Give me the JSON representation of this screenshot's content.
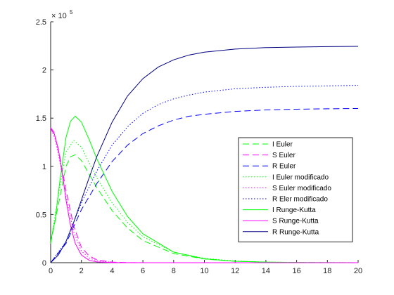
{
  "chart_data": {
    "type": "line",
    "xlim": [
      0,
      20
    ],
    "ylim": [
      0,
      250000
    ],
    "x_ticks": [
      "0",
      "2",
      "4",
      "6",
      "8",
      "10",
      "12",
      "14",
      "16",
      "18",
      "20"
    ],
    "y_ticks": [
      "0",
      "0.5",
      "1",
      "1.5",
      "2",
      "2.5"
    ],
    "y_exponent_base": "× 10",
    "y_exponent_power": "5",
    "grid": false,
    "legend_position": "right-middle",
    "series": [
      {
        "name": "I Euler",
        "color": "#00ff00",
        "style": "dashed",
        "x": [
          0,
          0.5,
          1,
          1.3,
          1.6,
          2,
          2.5,
          3,
          4,
          5,
          6,
          8,
          10,
          12,
          14,
          16,
          18,
          20
        ],
        "y": [
          20000,
          60000,
          100000,
          110000,
          112000,
          106000,
          92000,
          78000,
          54000,
          36000,
          23000,
          9500,
          3800,
          1500,
          600,
          250,
          100,
          40
        ]
      },
      {
        "name": "S Euler",
        "color": "#ff00ff",
        "style": "dashed",
        "x": [
          0,
          0.3,
          0.6,
          1,
          1.5,
          2,
          2.5,
          3,
          4,
          5,
          6,
          8,
          10,
          20
        ],
        "y": [
          140000,
          130000,
          110000,
          75000,
          38000,
          16000,
          7000,
          3000,
          600,
          150,
          40,
          5,
          0,
          0
        ]
      },
      {
        "name": "R Euler",
        "color": "#0000ff",
        "style": "dashed",
        "x": [
          0,
          1,
          2,
          3,
          4,
          5,
          6,
          7,
          8,
          9,
          10,
          12,
          14,
          16,
          18,
          20
        ],
        "y": [
          0,
          20000,
          55000,
          82000,
          105000,
          122000,
          134000,
          142000,
          148000,
          152000,
          154000,
          157000,
          158500,
          159300,
          159700,
          160000
        ]
      },
      {
        "name": "I Euler modificado",
        "color": "#00ff00",
        "style": "dotted",
        "x": [
          0,
          0.5,
          1,
          1.5,
          2,
          2.5,
          3,
          4,
          5,
          6,
          8,
          10,
          12,
          14,
          16,
          18,
          20
        ],
        "y": [
          20000,
          70000,
          115000,
          127000,
          120000,
          104000,
          88000,
          62000,
          42000,
          27000,
          11000,
          4500,
          1800,
          700,
          280,
          110,
          40
        ]
      },
      {
        "name": "S Euler modificado",
        "color": "#ff00ff",
        "style": "dotted",
        "x": [
          0,
          0.3,
          0.6,
          1,
          1.5,
          2,
          2.5,
          3,
          4,
          5,
          6,
          8,
          10,
          20
        ],
        "y": [
          140000,
          128000,
          105000,
          68000,
          32000,
          12000,
          5000,
          2000,
          400,
          100,
          25,
          3,
          0,
          0
        ]
      },
      {
        "name": "R Eler modificado",
        "color": "#0000ff",
        "style": "dotted",
        "x": [
          0,
          1,
          2,
          3,
          4,
          5,
          6,
          7,
          8,
          9,
          10,
          12,
          14,
          16,
          18,
          20
        ],
        "y": [
          0,
          22000,
          62000,
          95000,
          122000,
          141000,
          155000,
          164000,
          170000,
          174000,
          177000,
          180500,
          182000,
          183000,
          183500,
          184000
        ]
      },
      {
        "name": "I Runge-Kutta",
        "color": "#00ff00",
        "style": "solid",
        "x": [
          0,
          0.3,
          0.6,
          1,
          1.3,
          1.6,
          2,
          2.5,
          3,
          4,
          5,
          6,
          8,
          10,
          12,
          14,
          16,
          18,
          20
        ],
        "y": [
          22000,
          45000,
          85000,
          130000,
          147000,
          152000,
          146000,
          128000,
          108000,
          74000,
          48000,
          30000,
          11000,
          4000,
          1500,
          500,
          200,
          70,
          20
        ]
      },
      {
        "name": "S Runge-Kutta",
        "color": "#ff00ff",
        "style": "solid",
        "x": [
          0,
          0.2,
          0.5,
          0.8,
          1,
          1.3,
          1.6,
          2,
          2.5,
          3,
          4,
          5,
          20
        ],
        "y": [
          140000,
          136000,
          118000,
          88000,
          65000,
          38000,
          20000,
          8000,
          2500,
          800,
          80,
          10,
          0
        ]
      },
      {
        "name": "R Runge-Kutta",
        "color": "#000080",
        "style": "solid",
        "x": [
          0,
          0.5,
          1,
          1.5,
          2,
          2.5,
          3,
          4,
          5,
          6,
          7,
          8,
          9,
          10,
          12,
          14,
          16,
          18,
          20
        ],
        "y": [
          0,
          8000,
          22000,
          42000,
          65000,
          88000,
          110000,
          146000,
          173000,
          191000,
          203000,
          210500,
          215500,
          218500,
          221700,
          223200,
          223800,
          224200,
          224500
        ]
      }
    ]
  }
}
